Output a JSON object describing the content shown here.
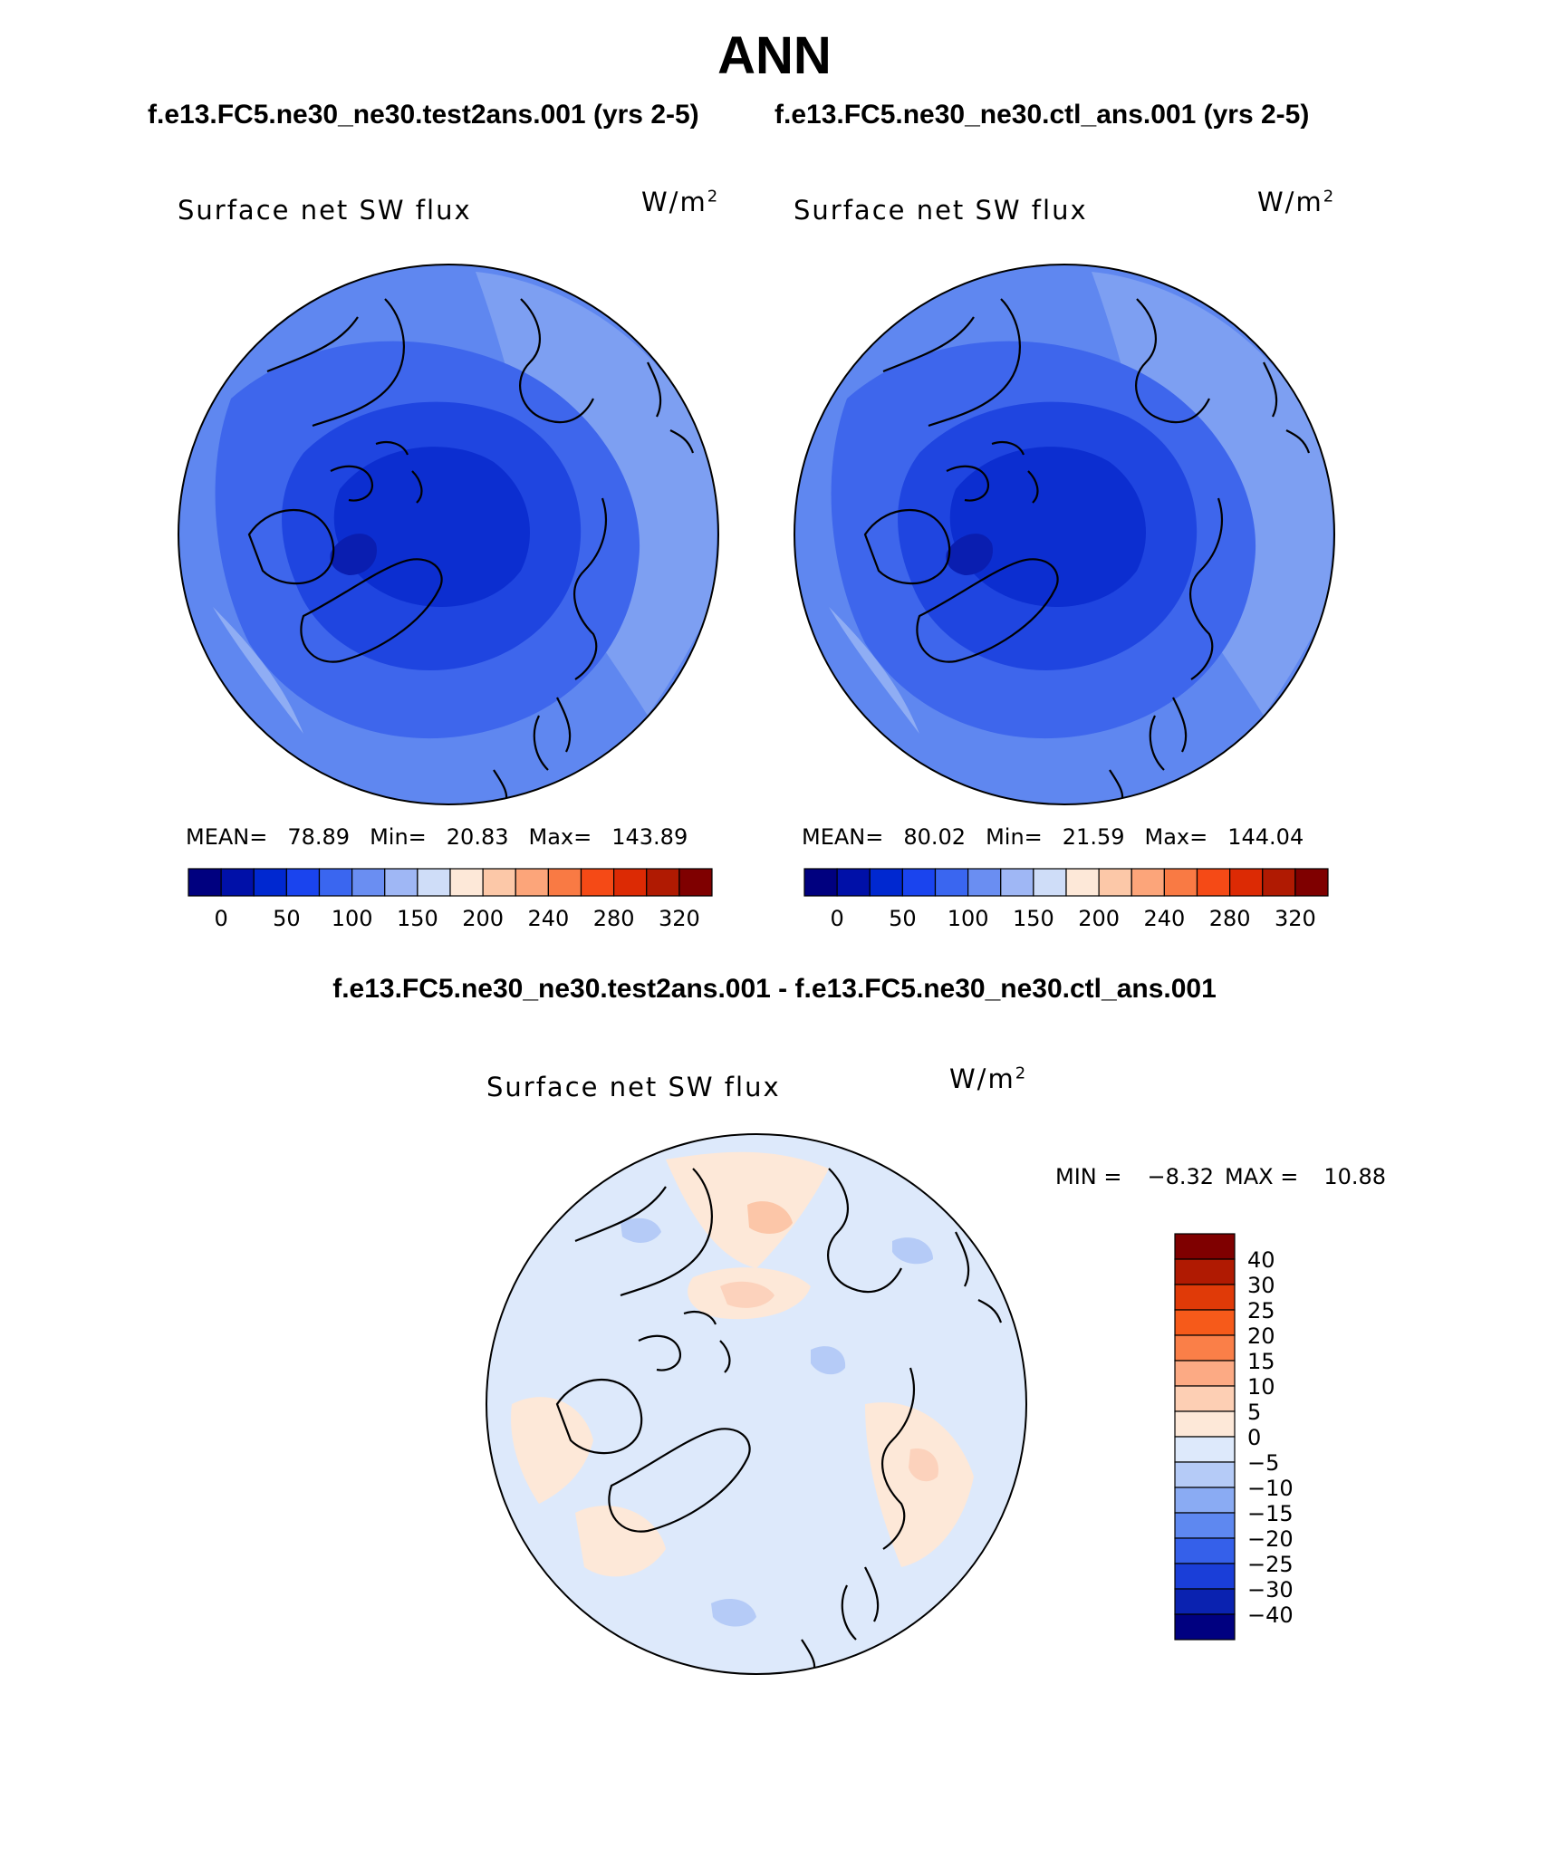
{
  "figure": {
    "title": "ANN",
    "case_left": "f.e13.FC5.ne30_ne30.test2ans.001 (yrs 2-5)",
    "case_right": "f.e13.FC5.ne30_ne30.ctl_ans.001 (yrs 2-5)",
    "diff_title": "f.e13.FC5.ne30_ne30.test2ans.001 - f.e13.FC5.ne30_ne30.ctl_ans.001"
  },
  "panels": {
    "left": {
      "label": "Surface net SW flux",
      "units": "W/m",
      "units_sup": "2",
      "mean_label": "MEAN=",
      "mean": "78.89",
      "min_label": "Min=",
      "min": "20.83",
      "max_label": "Max=",
      "max": "143.89"
    },
    "right": {
      "label": "Surface net SW flux",
      "units": "W/m",
      "units_sup": "2",
      "mean_label": "MEAN=",
      "mean": "80.02",
      "min_label": "Min=",
      "min": "21.59",
      "max_label": "Max=",
      "max": "144.04"
    },
    "diff": {
      "label": "Surface net SW flux",
      "units": "W/m",
      "units_sup": "2",
      "min_label": "MIN =",
      "min": "−8.32",
      "max_label": "MAX =",
      "max": "10.88"
    }
  },
  "colorbars": {
    "absolute": {
      "colors": [
        "#00007f",
        "#0010a8",
        "#0028d0",
        "#1a44ee",
        "#3a66f0",
        "#6a8ef2",
        "#9fb7f5",
        "#cfddf8",
        "#fde8d8",
        "#fcc8a8",
        "#fca57a",
        "#f97a44",
        "#f54a16",
        "#dc2a04",
        "#b01a02",
        "#7f0000"
      ],
      "tick_labels": [
        "0",
        "50",
        "100",
        "150",
        "200",
        "240",
        "280",
        "320"
      ]
    },
    "difference": {
      "colors": [
        "#7f0000",
        "#b01a02",
        "#e03a08",
        "#f65a1a",
        "#fa7f48",
        "#fcaa84",
        "#fdcfb4",
        "#fde8d8",
        "#dde9fb",
        "#b5cbf7",
        "#8aabf3",
        "#5e88f0",
        "#3560ea",
        "#1a3ed8",
        "#0a22b0",
        "#000080"
      ],
      "tick_labels": [
        "40",
        "30",
        "25",
        "20",
        "15",
        "10",
        "5",
        "0",
        "−5",
        "−10",
        "−15",
        "−20",
        "−25",
        "−30",
        "−40"
      ]
    }
  }
}
